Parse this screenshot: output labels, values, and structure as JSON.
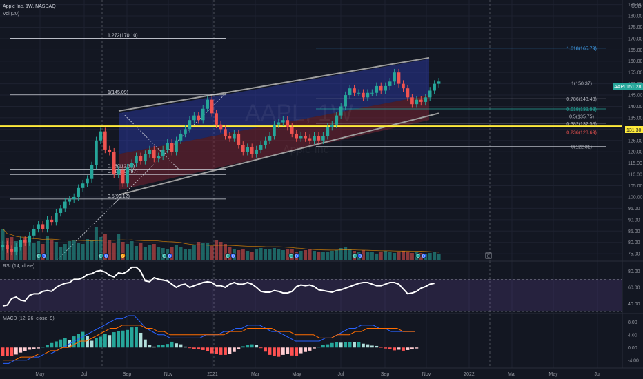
{
  "header": {
    "symbol": "Apple Inc, 1W, NASDAQ",
    "volume_label": "Vol (20)",
    "currency": "USD",
    "watermark_ticker": "AAPL, 1W",
    "watermark_name": "Apple Inc"
  },
  "rsi_panel": {
    "label": "RSI (14, close)"
  },
  "macd_panel": {
    "label": "MACD (12, 26, close, 9)"
  },
  "badges": {
    "ticker": "AAPL",
    "last_price": "151.28",
    "yellow_line": "131.30"
  },
  "colors": {
    "background": "#131722",
    "up": "#26a69a",
    "down": "#ef5350",
    "channel_upper": "#3345d6",
    "channel_lower": "#8b2635",
    "yellow_line": "#ffeb3b",
    "rsi_line": "#ffffff",
    "macd_line": "#2962ff",
    "signal_line": "#ff6d00"
  },
  "chart_data": {
    "type": "candlestick",
    "x_axis_labels": [
      "May",
      "Jul",
      "Sep",
      "Nov",
      "2021",
      "Mar",
      "May",
      "Jul",
      "Sep",
      "Nov",
      "2022",
      "Mar",
      "May",
      "Jul"
    ],
    "price_axis": {
      "ticks": [
        "185.00",
        "180.00",
        "175.00",
        "170.00",
        "165.00",
        "160.00",
        "155.00",
        "150.00",
        "145.00",
        "140.00",
        "135.00",
        "130.00",
        "125.00",
        "120.00",
        "115.00",
        "110.00",
        "105.00",
        "100.00",
        "95.00",
        "90.00",
        "85.00",
        "80.00",
        "75.00"
      ],
      "range": [
        72,
        187
      ]
    },
    "rsi_axis": {
      "ticks": [
        "80.00",
        "60.00",
        "40.00"
      ],
      "range": [
        30,
        90
      ],
      "bands": [
        70,
        30
      ]
    },
    "macd_axis": {
      "ticks": [
        "8.00",
        "4.00",
        "0.00",
        "-4.00"
      ],
      "range": [
        -6,
        10
      ]
    },
    "fib_levels_left": [
      {
        "label": "1.272(170.10)",
        "value": 170.1
      },
      {
        "label": "1(145.09)",
        "value": 145.09
      },
      {
        "label": "0.65(112.31)",
        "value": 112.31
      },
      {
        "label": "0.618(109.97)",
        "value": 109.97
      },
      {
        "label": "0.5(99.12)",
        "value": 99.12
      }
    ],
    "fib_levels_right": [
      {
        "label": "1.618(165.79)",
        "value": 165.79,
        "color": "#42a5f5"
      },
      {
        "label": "1(150.37)",
        "value": 150.37,
        "color": "#b2b5be"
      },
      {
        "label": "0.786(143.43)",
        "value": 143.43,
        "color": "#b2b5be"
      },
      {
        "label": "0.618(138.93)",
        "value": 138.93,
        "color": "#26a69a"
      },
      {
        "label": "0.5(135.75)",
        "value": 135.75,
        "color": "#b2b5be"
      },
      {
        "label": "0.382(132.58)",
        "value": 132.58,
        "color": "#b2b5be"
      },
      {
        "label": "0.236(128.69)",
        "value": 128.69,
        "color": "#ef5350"
      },
      {
        "label": "0(122.31)",
        "value": 122.31,
        "color": "#b2b5be"
      }
    ],
    "horizontal_line": 131.3,
    "last_price": 151.28,
    "closes": [
      79,
      77,
      76,
      78,
      81,
      80,
      83,
      86,
      88,
      86,
      90,
      89,
      93,
      95,
      98,
      99,
      100,
      104,
      106,
      108,
      114,
      125,
      129,
      121,
      120,
      110,
      112,
      106,
      113,
      115,
      118,
      116,
      119,
      121,
      117,
      118,
      121,
      124,
      120,
      125,
      128,
      130,
      134,
      136,
      134,
      139,
      143,
      137,
      132,
      130,
      127,
      126,
      128,
      123,
      120,
      122,
      119,
      121,
      123,
      125,
      127,
      132,
      133,
      134,
      131,
      128,
      126,
      127,
      126,
      125,
      127,
      125,
      127,
      131,
      132,
      136,
      140,
      145,
      148,
      146,
      146,
      144,
      146,
      146,
      149,
      147,
      149,
      151,
      155,
      150,
      148,
      144,
      141,
      143,
      142,
      144,
      147,
      150,
      151
    ],
    "volumes": [
      46,
      32,
      34,
      28,
      30,
      32,
      26,
      25,
      28,
      24,
      35,
      30,
      27,
      20,
      24,
      28,
      30,
      25,
      24,
      31,
      30,
      48,
      34,
      39,
      29,
      25,
      38,
      27,
      24,
      28,
      21,
      26,
      19,
      23,
      24,
      20,
      18,
      17,
      20,
      23,
      19,
      17,
      16,
      22,
      27,
      25,
      26,
      21,
      30,
      27,
      24,
      19,
      16,
      15,
      17,
      14,
      13,
      16,
      18,
      17,
      16,
      18,
      17,
      15,
      16,
      17,
      13,
      14,
      15,
      16,
      14,
      13,
      12,
      13,
      14,
      15,
      18,
      20,
      17,
      14,
      12,
      15,
      13,
      12,
      10,
      12,
      14,
      13,
      11,
      12,
      14,
      13,
      11,
      12,
      11,
      10,
      11,
      12,
      10
    ],
    "rsi": [
      37,
      38,
      46,
      48,
      44,
      43,
      50,
      52,
      52,
      55,
      56,
      55,
      60,
      63,
      65,
      66,
      70,
      70,
      72,
      76,
      77,
      80,
      81,
      79,
      75,
      73,
      78,
      77,
      80,
      85,
      85,
      80,
      68,
      67,
      72,
      70,
      69,
      68,
      64,
      60,
      63,
      64,
      60,
      62,
      64,
      66,
      67,
      66,
      62,
      62,
      60,
      64,
      66,
      64,
      64,
      66,
      64,
      60,
      55,
      54,
      54,
      56,
      55,
      53,
      53,
      55,
      61,
      63,
      62,
      63,
      61,
      57,
      56,
      55,
      54,
      56,
      57,
      59,
      61,
      63,
      65,
      66,
      66,
      64,
      62,
      62,
      64,
      66,
      66,
      64,
      58,
      52,
      53,
      55,
      59,
      61,
      64,
      65
    ],
    "macd_hist": [
      -2.6,
      -2.6,
      -2.6,
      -2.2,
      -1.6,
      -1.2,
      -0.7,
      -0.4,
      -0.3,
      0.1,
      0.8,
      1.4,
      1.9,
      2.5,
      2.9,
      2.4,
      3.5,
      4.2,
      4.9,
      3.6,
      2.1,
      2.9,
      3.4,
      4.3,
      3.9,
      4.8,
      5.2,
      5.3,
      5.5,
      6.3,
      6.4,
      4.6,
      2.5,
      0.9,
      0.3,
      0.8,
      0.9,
      1.1,
      1.8,
      1.3,
      1.0,
      0.3,
      -0.2,
      -0.4,
      -0.6,
      -0.8,
      -1.2,
      -1.8,
      -1.9,
      -2.3,
      -2.3,
      -1.9,
      -1.4,
      -0.6,
      0.4,
      0.7,
      1.0,
      0.8,
      -0.2,
      -1.3,
      -2.3,
      -2.6,
      -2.9,
      -2.3,
      -2.1,
      -2.5,
      -2.6,
      -1.8,
      -1.4,
      -1.0,
      -0.3,
      0.2,
      0.9,
      1.0,
      1.4,
      1.7,
      1.5,
      1.7,
      1.7,
      1.6,
      1.6,
      1.2,
      1.0,
      0.6,
      0.5,
      -0.1,
      -0.3,
      -0.5,
      -0.9,
      -0.7,
      -1.0,
      -0.8,
      -0.6,
      -0.3
    ],
    "macd_line": [
      -5,
      -5,
      -4,
      -4,
      -4,
      -3,
      -3,
      -2,
      -2,
      -1,
      0,
      1,
      2,
      3,
      4,
      5,
      6,
      7,
      8,
      9,
      9,
      10,
      10,
      8,
      6,
      5,
      4,
      4,
      3,
      3,
      3,
      3,
      3,
      3,
      4,
      4,
      4,
      5,
      5,
      6,
      6,
      7,
      7,
      7,
      6,
      5,
      5,
      4,
      3,
      2,
      2,
      2,
      2,
      2,
      3,
      3,
      4,
      5,
      6,
      6,
      7,
      7,
      7,
      6,
      6,
      5,
      5,
      5,
      5,
      5
    ],
    "signal_line": [
      -4,
      -4,
      -4,
      -3,
      -3,
      -3,
      -2,
      -2,
      -1,
      -1,
      0,
      0,
      1,
      2,
      2,
      3,
      4,
      5,
      6,
      6,
      7,
      7,
      7,
      7,
      6,
      6,
      5,
      5,
      4,
      4,
      4,
      4,
      4,
      4,
      4,
      4,
      4,
      4,
      5,
      5,
      5,
      6,
      6,
      6,
      6,
      6,
      5,
      5,
      5,
      4,
      4,
      4,
      4,
      3,
      3,
      3,
      4,
      4,
      4,
      5,
      5,
      6,
      6,
      6,
      6,
      6,
      6,
      5,
      5,
      5
    ]
  }
}
